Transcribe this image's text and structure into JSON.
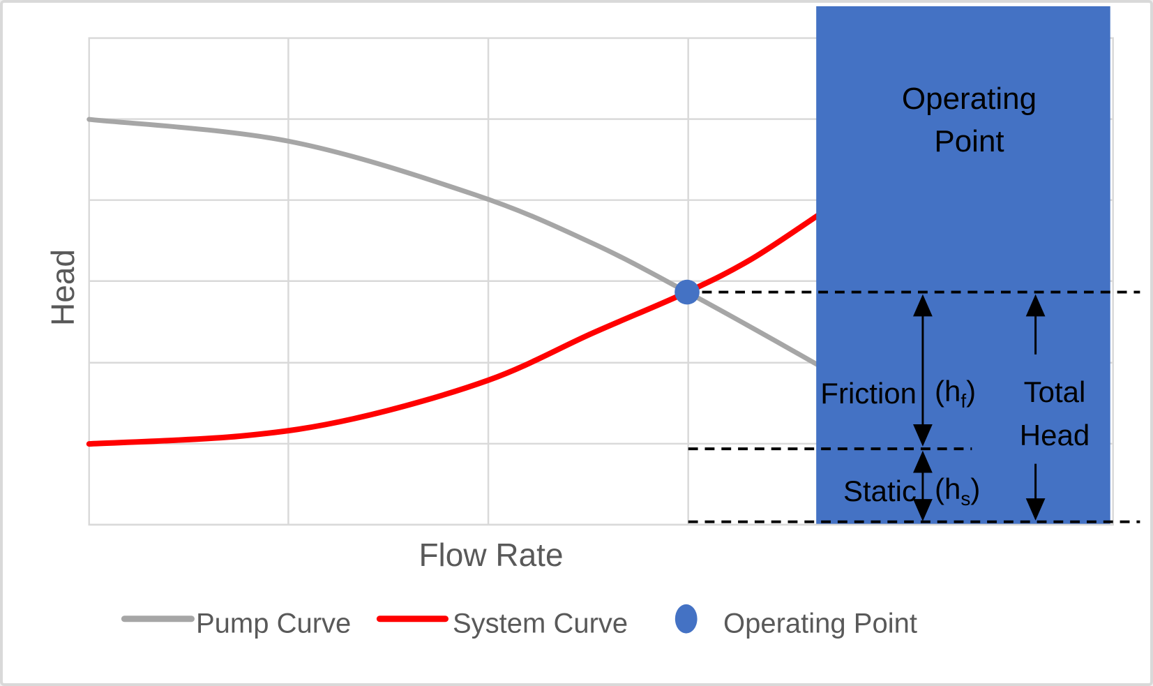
{
  "chart": {
    "x_axis_label": "Flow Rate",
    "y_axis_label": "Head",
    "colors": {
      "pump_curve": "#A6A6A6",
      "system_curve": "#FF0000",
      "operating_blue": "#4472C4",
      "gridline": "#D9D9D9",
      "axis_text": "#595959",
      "annotation_text": "#000000",
      "dashed_line": "#000000",
      "background": "#FFFFFF"
    },
    "chart_data": {
      "type": "line",
      "xlabel": "Flow Rate",
      "ylabel": "Head",
      "axis_ticks": "none (unlabeled qualitative axes)",
      "grid": "on",
      "xlim": [
        0,
        1
      ],
      "ylim": [
        0,
        1
      ],
      "series": [
        {
          "name": "Pump Curve",
          "color": "#A6A6A6",
          "points": [
            [
              0,
              0.833
            ],
            [
              0.195,
              0.788
            ],
            [
              0.377,
              0.678
            ],
            [
              0.492,
              0.578
            ],
            [
              0.584,
              0.478
            ],
            [
              0.654,
              0.397
            ],
            [
              0.712,
              0.328
            ]
          ]
        },
        {
          "name": "System Curve",
          "color": "#FF0000",
          "points": [
            [
              0,
              0.166
            ],
            [
              0.147,
              0.182
            ],
            [
              0.259,
              0.218
            ],
            [
              0.39,
              0.297
            ],
            [
              0.492,
              0.394
            ],
            [
              0.584,
              0.478
            ],
            [
              0.647,
              0.546
            ],
            [
              0.712,
              0.636
            ]
          ]
        }
      ],
      "operating_point": {
        "x": 0.584,
        "y": 0.478
      },
      "reference_levels": {
        "total_head": 0.478,
        "static_head": 0.156,
        "datum": 0.006
      }
    }
  },
  "annotations": {
    "box_label_line1": "Operating",
    "box_label_line2": "Point",
    "friction": {
      "word": "Friction",
      "open": "(h",
      "sub": "f",
      "close": ")"
    },
    "static": {
      "word": "Static",
      "open": "(h",
      "sub": "s",
      "close": ")"
    },
    "total": {
      "line1": "Total",
      "line2": "Head"
    }
  },
  "legend": {
    "items": [
      {
        "label": "Pump Curve",
        "marker": "line",
        "color": "#A6A6A6"
      },
      {
        "label": "System Curve",
        "marker": "line",
        "color": "#FF0000"
      },
      {
        "label": "Operating Point",
        "marker": "ellipse",
        "color": "#4472C4"
      }
    ]
  }
}
